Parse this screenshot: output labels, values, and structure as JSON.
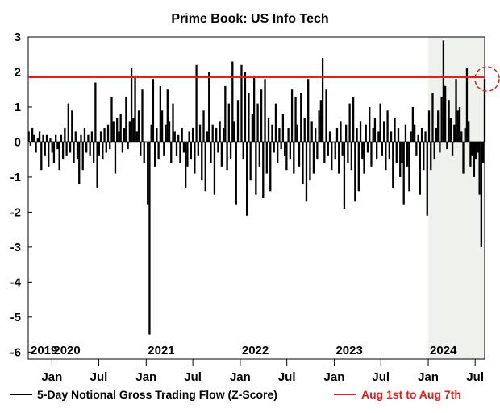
{
  "chart_data": {
    "type": "bar",
    "title": "Prime Book: US Info Tech",
    "xlabel": "",
    "ylabel": "",
    "ylim": [
      -6.2,
      3
    ],
    "yticks": [
      3,
      2,
      1,
      0,
      -1,
      -2,
      -3,
      -4,
      -5,
      -6
    ],
    "x_range": [
      "2019-10-01",
      "2024-08-07"
    ],
    "x_month_ticks": [
      {
        "label": "Jan",
        "date": "2020-01-01"
      },
      {
        "label": "Jul",
        "date": "2020-07-01"
      },
      {
        "label": "Jan",
        "date": "2021-01-01"
      },
      {
        "label": "Jul",
        "date": "2021-07-01"
      },
      {
        "label": "Jan",
        "date": "2022-01-01"
      },
      {
        "label": "Jul",
        "date": "2022-07-01"
      },
      {
        "label": "Jan",
        "date": "2023-01-01"
      },
      {
        "label": "Jul",
        "date": "2023-07-01"
      },
      {
        "label": "Jan",
        "date": "2024-01-01"
      },
      {
        "label": "Jul",
        "date": "2024-07-01"
      }
    ],
    "x_year_labels": [
      {
        "label": "2019",
        "date": "2019-10-01"
      },
      {
        "label": "2020",
        "date": "2020-01-01"
      },
      {
        "label": "2021",
        "date": "2021-01-01"
      },
      {
        "label": "2022",
        "date": "2022-01-01"
      },
      {
        "label": "2023",
        "date": "2023-01-01"
      },
      {
        "label": "2024",
        "date": "2024-01-01"
      }
    ],
    "shaded_region": {
      "start": "2024-01-01",
      "end": "2024-08-07",
      "color": "#eef1ec"
    },
    "reference_line": {
      "y": 1.85,
      "color": "#e0201b",
      "label": "Aug 1st to Aug 7th"
    },
    "highlight_circle": {
      "date": "2024-08-07",
      "y": 1.8,
      "color": "#e0201b"
    },
    "bar_color": "#000000",
    "grid": false,
    "legend_position": "bottom",
    "series": [
      {
        "name": "5-Day Notional Gross Trading Flow (Z-Score)",
        "points": [
          [
            "2019-10-03",
            0.3
          ],
          [
            "2019-10-10",
            -0.1
          ],
          [
            "2019-10-17",
            0.4
          ],
          [
            "2019-10-24",
            0.2
          ],
          [
            "2019-10-31",
            -0.3
          ],
          [
            "2019-11-07",
            0.1
          ],
          [
            "2019-11-14",
            0.3
          ],
          [
            "2019-11-21",
            -0.8
          ],
          [
            "2019-11-28",
            0.2
          ],
          [
            "2019-12-05",
            -0.4
          ],
          [
            "2019-12-12",
            0.2
          ],
          [
            "2019-12-19",
            -0.7
          ],
          [
            "2019-12-26",
            0.1
          ],
          [
            "2020-01-02",
            -0.3
          ],
          [
            "2020-01-09",
            -0.6
          ],
          [
            "2020-01-16",
            0.2
          ],
          [
            "2020-01-23",
            -0.2
          ],
          [
            "2020-01-30",
            -0.8
          ],
          [
            "2020-02-06",
            0.2
          ],
          [
            "2020-02-13",
            -0.5
          ],
          [
            "2020-02-20",
            0.4
          ],
          [
            "2020-02-27",
            -0.4
          ],
          [
            "2020-03-05",
            1.1
          ],
          [
            "2020-03-12",
            -0.3
          ],
          [
            "2020-03-19",
            0.9
          ],
          [
            "2020-03-26",
            -0.6
          ],
          [
            "2020-04-02",
            0.3
          ],
          [
            "2020-04-09",
            -0.5
          ],
          [
            "2020-04-16",
            -1.2
          ],
          [
            "2020-04-23",
            0.2
          ],
          [
            "2020-04-30",
            -0.8
          ],
          [
            "2020-05-07",
            0.4
          ],
          [
            "2020-05-14",
            -0.3
          ],
          [
            "2020-05-21",
            0.2
          ],
          [
            "2020-05-28",
            -0.4
          ],
          [
            "2020-06-04",
            0.3
          ],
          [
            "2020-06-11",
            -0.6
          ],
          [
            "2020-06-18",
            1.7
          ],
          [
            "2020-06-25",
            -1.3
          ],
          [
            "2020-07-02",
            -0.4
          ],
          [
            "2020-07-09",
            0.3
          ],
          [
            "2020-07-16",
            -0.5
          ],
          [
            "2020-07-23",
            0.4
          ],
          [
            "2020-07-30",
            -0.3
          ],
          [
            "2020-08-06",
            0.5
          ],
          [
            "2020-08-13",
            -0.2
          ],
          [
            "2020-08-20",
            1.3
          ],
          [
            "2020-08-27",
            0.6
          ],
          [
            "2020-09-03",
            -0.9
          ],
          [
            "2020-09-10",
            0.7
          ],
          [
            "2020-09-17",
            0.3
          ],
          [
            "2020-09-24",
            0.8
          ],
          [
            "2020-10-01",
            -0.3
          ],
          [
            "2020-10-08",
            0.4
          ],
          [
            "2020-10-15",
            1.3
          ],
          [
            "2020-10-22",
            -0.2
          ],
          [
            "2020-10-29",
            0.6
          ],
          [
            "2020-11-05",
            2.1
          ],
          [
            "2020-11-12",
            0.7
          ],
          [
            "2020-11-19",
            1.9
          ],
          [
            "2020-11-26",
            0.3
          ],
          [
            "2020-12-03",
            0.9
          ],
          [
            "2020-12-10",
            -0.4
          ],
          [
            "2020-12-17",
            1.5
          ],
          [
            "2020-12-24",
            -0.6
          ],
          [
            "2021-01-07",
            -1.8
          ],
          [
            "2021-01-14",
            -5.5
          ],
          [
            "2021-01-21",
            0.5
          ],
          [
            "2021-01-28",
            1.8
          ],
          [
            "2021-02-04",
            -0.7
          ],
          [
            "2021-02-11",
            0.4
          ],
          [
            "2021-02-18",
            -0.5
          ],
          [
            "2021-02-25",
            1.6
          ],
          [
            "2021-03-04",
            0.9
          ],
          [
            "2021-03-11",
            -0.4
          ],
          [
            "2021-03-18",
            0.5
          ],
          [
            "2021-03-25",
            1.5
          ],
          [
            "2021-04-01",
            0.6
          ],
          [
            "2021-04-08",
            -0.6
          ],
          [
            "2021-04-15",
            1.1
          ],
          [
            "2021-04-22",
            0.3
          ],
          [
            "2021-04-29",
            -0.4
          ],
          [
            "2021-05-06",
            0.2
          ],
          [
            "2021-05-13",
            -0.6
          ],
          [
            "2021-05-20",
            0.4
          ],
          [
            "2021-05-27",
            -0.3
          ],
          [
            "2021-06-03",
            -1.3
          ],
          [
            "2021-06-10",
            -0.7
          ],
          [
            "2021-06-17",
            0.3
          ],
          [
            "2021-06-24",
            -0.5
          ],
          [
            "2021-07-01",
            0.4
          ],
          [
            "2021-07-08",
            -0.9
          ],
          [
            "2021-07-15",
            2.2
          ],
          [
            "2021-07-22",
            -0.4
          ],
          [
            "2021-07-29",
            0.5
          ],
          [
            "2021-08-05",
            -1.1
          ],
          [
            "2021-08-12",
            0.9
          ],
          [
            "2021-08-19",
            -1.4
          ],
          [
            "2021-08-26",
            0.3
          ],
          [
            "2021-09-02",
            2.0
          ],
          [
            "2021-09-09",
            -0.6
          ],
          [
            "2021-09-16",
            0.5
          ],
          [
            "2021-09-23",
            -1.5
          ],
          [
            "2021-09-30",
            0.4
          ],
          [
            "2021-10-07",
            -0.3
          ],
          [
            "2021-10-14",
            0.6
          ],
          [
            "2021-10-21",
            -0.7
          ],
          [
            "2021-10-28",
            0.4
          ],
          [
            "2021-11-04",
            1.6
          ],
          [
            "2021-11-11",
            -0.8
          ],
          [
            "2021-11-18",
            1.1
          ],
          [
            "2021-11-25",
            -0.5
          ],
          [
            "2021-12-02",
            2.3
          ],
          [
            "2021-12-09",
            0.6
          ],
          [
            "2021-12-16",
            -1.8
          ],
          [
            "2021-12-23",
            1.2
          ],
          [
            "2022-01-06",
            2.2
          ],
          [
            "2022-01-13",
            -0.5
          ],
          [
            "2022-01-20",
            2.0
          ],
          [
            "2022-01-27",
            -2.1
          ],
          [
            "2022-02-03",
            1.4
          ],
          [
            "2022-02-10",
            -1.1
          ],
          [
            "2022-02-17",
            0.8
          ],
          [
            "2022-02-24",
            1.9
          ],
          [
            "2022-03-03",
            -1.5
          ],
          [
            "2022-03-10",
            1.1
          ],
          [
            "2022-03-17",
            -0.7
          ],
          [
            "2022-03-24",
            1.5
          ],
          [
            "2022-03-31",
            -1.6
          ],
          [
            "2022-04-07",
            1.8
          ],
          [
            "2022-04-14",
            -0.9
          ],
          [
            "2022-04-21",
            0.7
          ],
          [
            "2022-04-28",
            -1.4
          ],
          [
            "2022-05-05",
            0.5
          ],
          [
            "2022-05-12",
            -0.3
          ],
          [
            "2022-05-19",
            1.1
          ],
          [
            "2022-05-26",
            -0.6
          ],
          [
            "2022-06-02",
            0.4
          ],
          [
            "2022-06-09",
            -0.2
          ],
          [
            "2022-06-16",
            0.8
          ],
          [
            "2022-06-23",
            -0.4
          ],
          [
            "2022-06-30",
            -0.8
          ],
          [
            "2022-07-07",
            0.4
          ],
          [
            "2022-07-14",
            -0.5
          ],
          [
            "2022-07-21",
            1.5
          ],
          [
            "2022-07-28",
            -0.9
          ],
          [
            "2022-08-04",
            1.3
          ],
          [
            "2022-08-11",
            0.5
          ],
          [
            "2022-08-18",
            -0.7
          ],
          [
            "2022-08-25",
            1.4
          ],
          [
            "2022-09-01",
            -1.2
          ],
          [
            "2022-09-08",
            0.7
          ],
          [
            "2022-09-15",
            -1.7
          ],
          [
            "2022-09-22",
            1.8
          ],
          [
            "2022-09-29",
            -1.1
          ],
          [
            "2022-10-06",
            0.6
          ],
          [
            "2022-10-13",
            -0.9
          ],
          [
            "2022-10-20",
            0.4
          ],
          [
            "2022-10-27",
            -0.5
          ],
          [
            "2022-11-03",
            0.9
          ],
          [
            "2022-11-10",
            1.2
          ],
          [
            "2022-11-17",
            2.4
          ],
          [
            "2022-11-24",
            -0.6
          ],
          [
            "2022-12-01",
            1.5
          ],
          [
            "2022-12-08",
            -0.4
          ],
          [
            "2022-12-15",
            0.3
          ],
          [
            "2022-12-22",
            -0.8
          ],
          [
            "2023-01-05",
            -0.5
          ],
          [
            "2023-01-12",
            0.4
          ],
          [
            "2023-01-19",
            -0.9
          ],
          [
            "2023-01-26",
            0.6
          ],
          [
            "2023-02-02",
            -0.4
          ],
          [
            "2023-02-09",
            -1.9
          ],
          [
            "2023-02-16",
            0.5
          ],
          [
            "2023-02-23",
            -0.6
          ],
          [
            "2023-03-02",
            1.1
          ],
          [
            "2023-03-09",
            -0.8
          ],
          [
            "2023-03-16",
            1.3
          ],
          [
            "2023-03-23",
            -1.7
          ],
          [
            "2023-03-30",
            0.4
          ],
          [
            "2023-04-06",
            -1.4
          ],
          [
            "2023-04-13",
            0.6
          ],
          [
            "2023-04-20",
            -0.5
          ],
          [
            "2023-04-27",
            -0.9
          ],
          [
            "2023-05-04",
            0.5
          ],
          [
            "2023-05-11",
            -0.3
          ],
          [
            "2023-05-18",
            1.0
          ],
          [
            "2023-05-25",
            -0.7
          ],
          [
            "2023-06-01",
            0.4
          ],
          [
            "2023-06-08",
            0.7
          ],
          [
            "2023-06-15",
            -0.5
          ],
          [
            "2023-06-22",
            0.3
          ],
          [
            "2023-06-29",
            1.1
          ],
          [
            "2023-07-06",
            -0.4
          ],
          [
            "2023-07-13",
            0.6
          ],
          [
            "2023-07-20",
            -0.8
          ],
          [
            "2023-07-27",
            0.9
          ],
          [
            "2023-08-03",
            -0.5
          ],
          [
            "2023-08-10",
            0.3
          ],
          [
            "2023-08-17",
            -1.3
          ],
          [
            "2023-08-24",
            0.7
          ],
          [
            "2023-08-31",
            -0.6
          ],
          [
            "2023-09-07",
            0.4
          ],
          [
            "2023-09-14",
            -1.0
          ],
          [
            "2023-09-21",
            -0.6
          ],
          [
            "2023-09-28",
            -1.8
          ],
          [
            "2023-10-05",
            0.5
          ],
          [
            "2023-10-12",
            -0.7
          ],
          [
            "2023-10-19",
            -1.4
          ],
          [
            "2023-10-26",
            0.3
          ],
          [
            "2023-11-02",
            1.0
          ],
          [
            "2023-11-09",
            0.5
          ],
          [
            "2023-11-16",
            -0.4
          ],
          [
            "2023-11-23",
            0.2
          ],
          [
            "2023-11-30",
            -1.5
          ],
          [
            "2023-12-07",
            0.4
          ],
          [
            "2023-12-14",
            -0.8
          ],
          [
            "2023-12-21",
            0.3
          ],
          [
            "2023-12-28",
            -2.1
          ],
          [
            "2024-01-04",
            0.9
          ],
          [
            "2024-01-11",
            -0.8
          ],
          [
            "2024-01-18",
            1.4
          ],
          [
            "2024-01-25",
            -0.5
          ],
          [
            "2024-02-01",
            0.4
          ],
          [
            "2024-02-08",
            0.9
          ],
          [
            "2024-02-15",
            -0.3
          ],
          [
            "2024-02-22",
            1.3
          ],
          [
            "2024-02-29",
            2.9
          ],
          [
            "2024-03-07",
            1.6
          ],
          [
            "2024-03-14",
            -0.2
          ],
          [
            "2024-03-21",
            1.2
          ],
          [
            "2024-03-28",
            0.7
          ],
          [
            "2024-04-04",
            -0.4
          ],
          [
            "2024-04-11",
            0.5
          ],
          [
            "2024-04-18",
            1.8
          ],
          [
            "2024-04-25",
            0.9
          ],
          [
            "2024-05-02",
            1.0
          ],
          [
            "2024-05-09",
            0.3
          ],
          [
            "2024-05-16",
            -0.9
          ],
          [
            "2024-05-23",
            0.4
          ],
          [
            "2024-05-30",
            2.1
          ],
          [
            "2024-06-06",
            0.6
          ],
          [
            "2024-06-13",
            -0.7
          ],
          [
            "2024-06-20",
            -0.4
          ],
          [
            "2024-06-27",
            -1.0
          ],
          [
            "2024-07-04",
            -0.5
          ],
          [
            "2024-07-11",
            -0.3
          ],
          [
            "2024-07-18",
            -1.5
          ],
          [
            "2024-07-25",
            -3.0
          ],
          [
            "2024-08-01",
            -0.6
          ],
          [
            "2024-08-07",
            1.8
          ]
        ]
      }
    ]
  }
}
